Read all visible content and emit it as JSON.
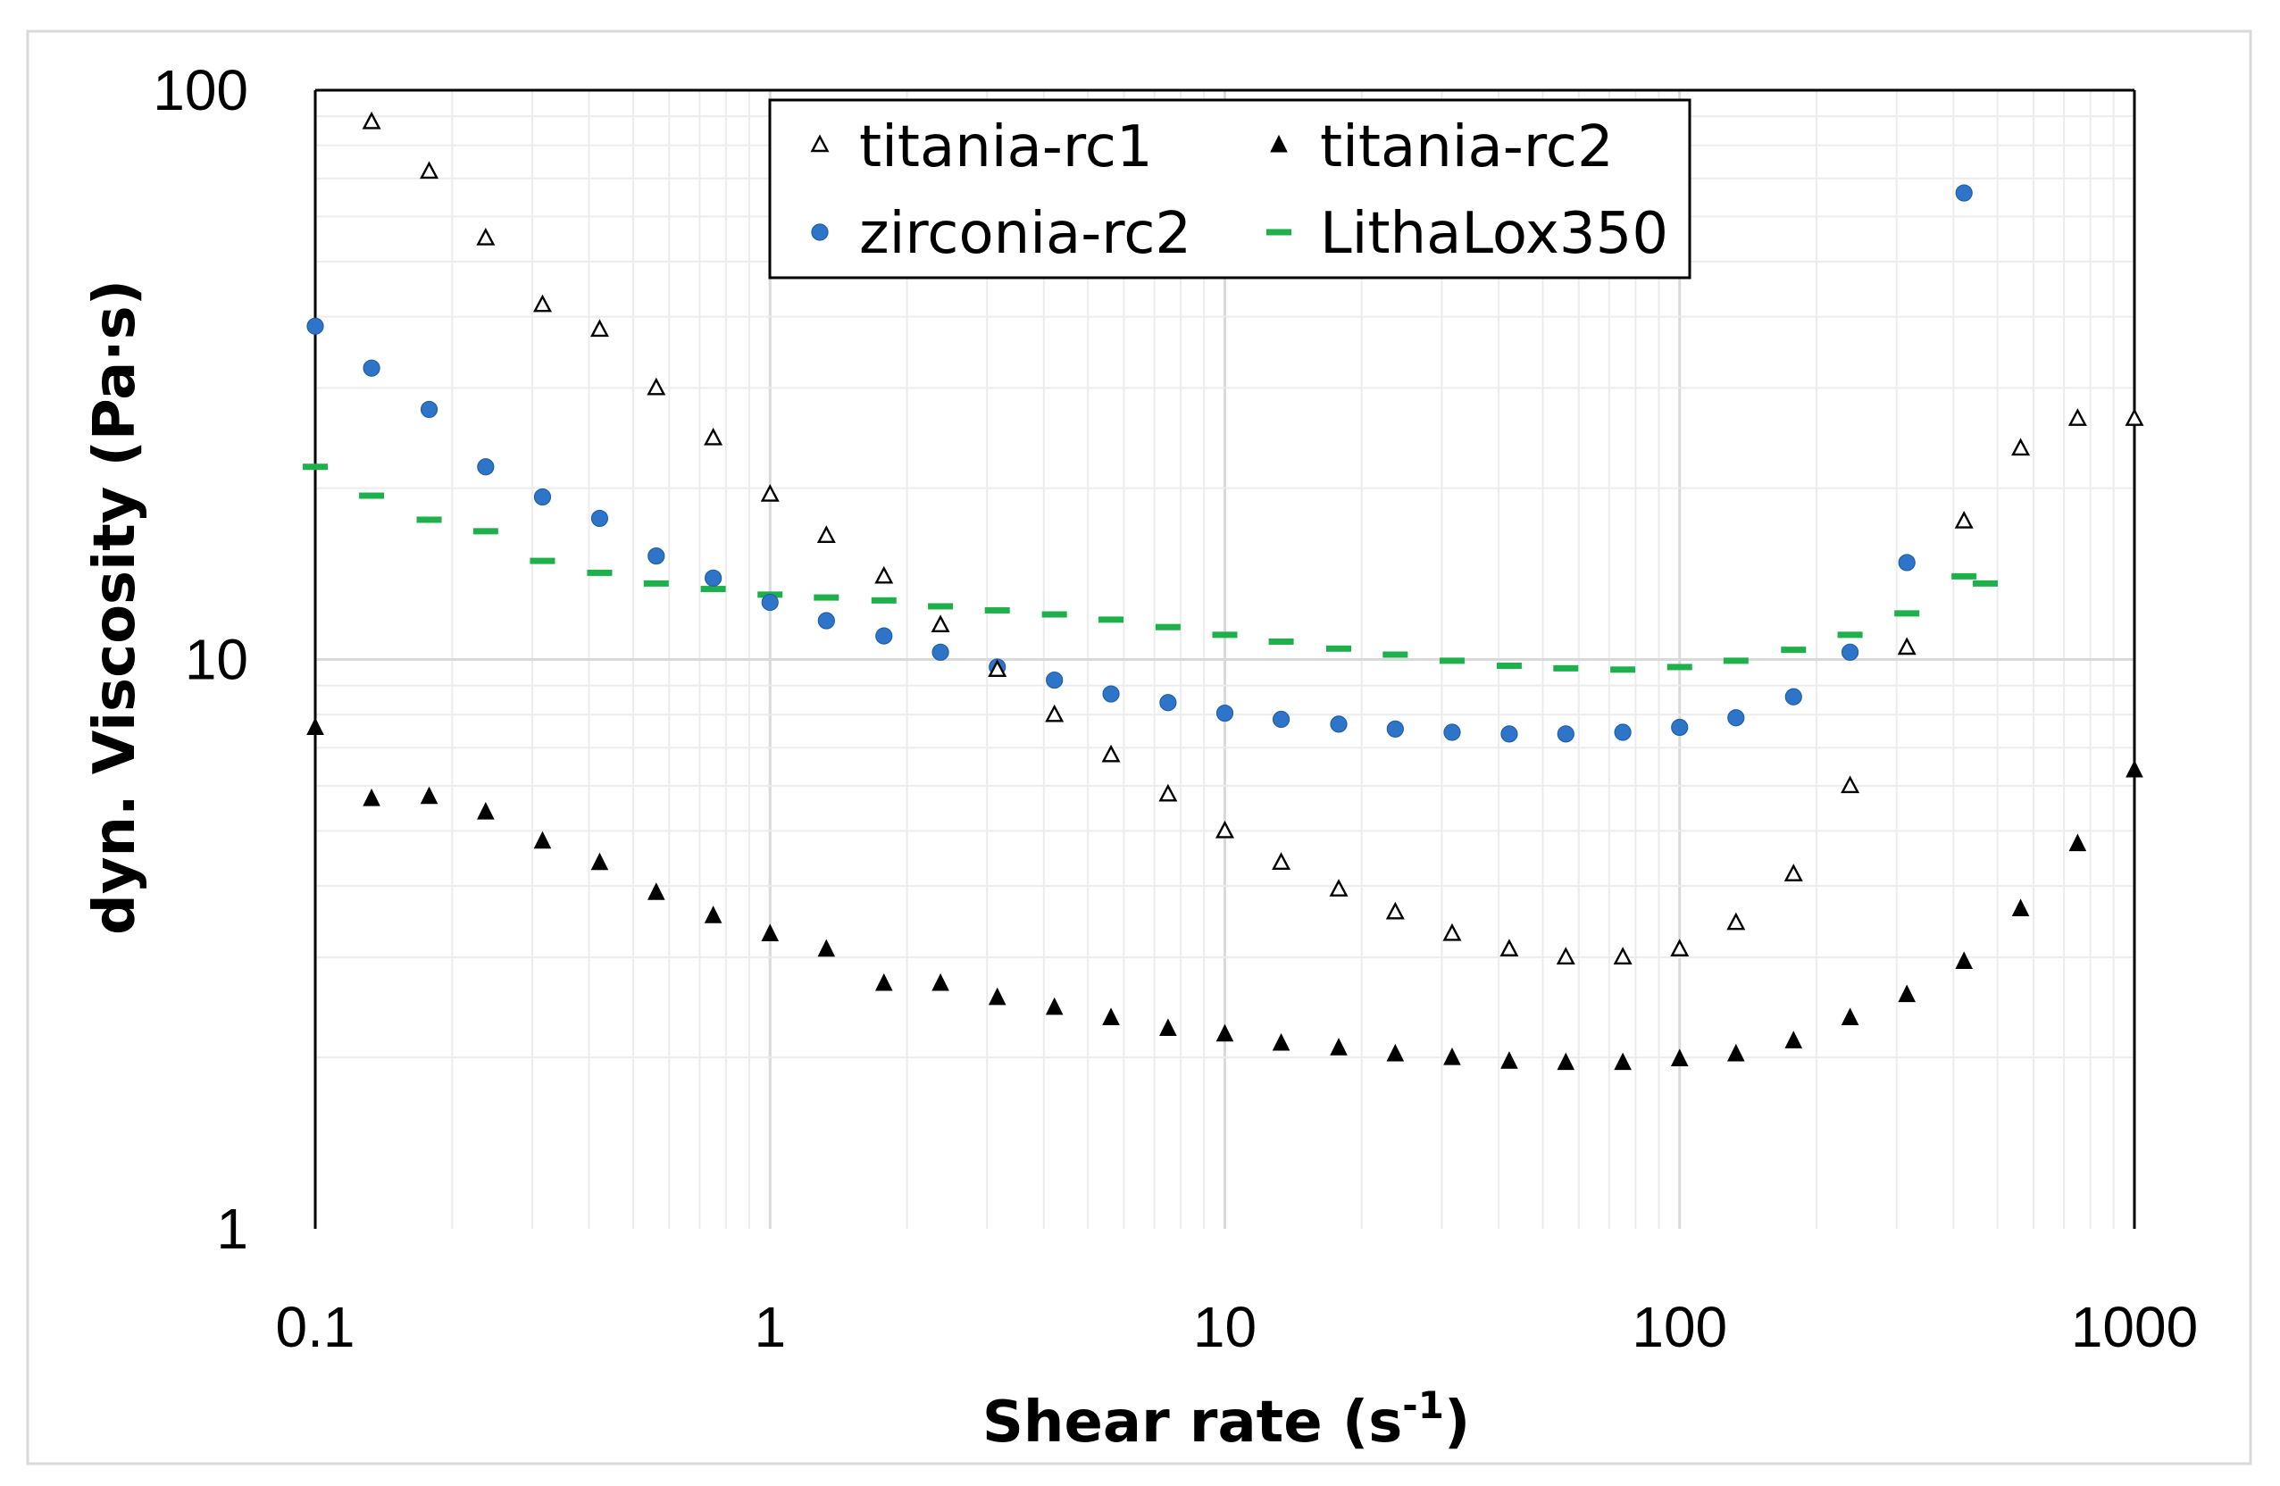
{
  "chart_data": {
    "type": "scatter",
    "title": "",
    "xlabel": "Shear rate (s",
    "xlabel_sup": "-1",
    "xlabel_end": ")",
    "ylabel": "dyn. Viscosity (Pa·s)",
    "x_scale": "log",
    "y_scale": "log",
    "xlim": [
      0.1,
      1000
    ],
    "ylim": [
      1,
      100
    ],
    "x_ticks": [
      {
        "value": 0.1,
        "label": "0.1"
      },
      {
        "value": 1,
        "label": "1"
      },
      {
        "value": 10,
        "label": "10"
      },
      {
        "value": 100,
        "label": "100"
      },
      {
        "value": 1000,
        "label": "1000"
      }
    ],
    "y_ticks": [
      {
        "value": 1,
        "label": "1"
      },
      {
        "value": 10,
        "label": "10"
      },
      {
        "value": 100,
        "label": "100"
      }
    ],
    "grid": true,
    "legend_position": "top-center",
    "series": [
      {
        "name": "titania-rc1",
        "marker": "triangle-open",
        "color": "#000000",
        "x": [
          0.133,
          0.178,
          0.237,
          0.316,
          0.422,
          0.562,
          0.75,
          1.0,
          1.33,
          1.78,
          2.37,
          3.16,
          4.22,
          5.62,
          7.5,
          10,
          13.3,
          17.8,
          23.7,
          31.6,
          42.2,
          56.2,
          75,
          100,
          133,
          178,
          237,
          316,
          422,
          562,
          750,
          1000
        ],
        "y": [
          88,
          72,
          55,
          42,
          38,
          30,
          24.5,
          19.5,
          16.5,
          14,
          11.5,
          9.6,
          8.0,
          6.8,
          5.8,
          5.0,
          4.4,
          3.95,
          3.6,
          3.3,
          3.1,
          3.0,
          3.0,
          3.1,
          3.45,
          4.2,
          6.0,
          10.5,
          17.5,
          23.5,
          26.5,
          26.5
        ]
      },
      {
        "name": "titania-rc2",
        "marker": "triangle-filled",
        "color": "#000000",
        "x": [
          0.1,
          0.133,
          0.178,
          0.237,
          0.316,
          0.422,
          0.562,
          0.75,
          1.0,
          1.33,
          1.78,
          2.37,
          3.16,
          4.22,
          5.62,
          7.5,
          10,
          13.3,
          17.8,
          23.7,
          31.6,
          42.2,
          56.2,
          75,
          100,
          133,
          178,
          237,
          316,
          422,
          562,
          750,
          1000
        ],
        "y": [
          7.6,
          5.7,
          5.75,
          5.4,
          4.8,
          4.4,
          3.9,
          3.55,
          3.3,
          3.1,
          2.7,
          2.7,
          2.55,
          2.45,
          2.35,
          2.25,
          2.2,
          2.12,
          2.08,
          2.03,
          2.0,
          1.97,
          1.96,
          1.96,
          1.99,
          2.03,
          2.14,
          2.35,
          2.58,
          2.95,
          3.65,
          4.75,
          6.4
        ]
      },
      {
        "name": "zirconia-rc2",
        "marker": "circle-filled",
        "color": "#2e75c9",
        "x": [
          0.1,
          0.133,
          0.178,
          0.237,
          0.316,
          0.422,
          0.562,
          0.75,
          1.0,
          1.33,
          1.78,
          2.37,
          3.16,
          4.22,
          5.62,
          7.5,
          10,
          13.3,
          17.8,
          23.7,
          31.6,
          42.2,
          56.2,
          75,
          100,
          133,
          178,
          237,
          316,
          422
        ],
        "y": [
          38.5,
          32.5,
          27.5,
          21.8,
          19.3,
          17.7,
          15.2,
          13.9,
          12.6,
          11.7,
          11.0,
          10.3,
          9.7,
          9.2,
          8.7,
          8.4,
          8.05,
          7.85,
          7.7,
          7.55,
          7.45,
          7.4,
          7.4,
          7.45,
          7.6,
          7.9,
          8.6,
          10.3,
          14.8,
          66
        ]
      },
      {
        "name": "LithaLox350",
        "marker": "dash",
        "color": "#1eb04b",
        "x": [
          0.1,
          0.133,
          0.178,
          0.237,
          0.316,
          0.422,
          0.562,
          0.75,
          1.0,
          1.33,
          1.78,
          2.37,
          3.16,
          4.22,
          5.62,
          7.5,
          10,
          13.3,
          17.8,
          23.7,
          31.6,
          42.2,
          56.2,
          75,
          100,
          133,
          178,
          237,
          316,
          422,
          470
        ],
        "y": [
          21.8,
          19.4,
          17.6,
          16.8,
          14.9,
          14.2,
          13.6,
          13.3,
          13.0,
          12.85,
          12.7,
          12.4,
          12.2,
          12.0,
          11.75,
          11.4,
          11.05,
          10.75,
          10.45,
          10.2,
          9.95,
          9.75,
          9.65,
          9.6,
          9.7,
          9.95,
          10.4,
          11.05,
          12.05,
          14.0,
          13.6
        ]
      }
    ]
  }
}
